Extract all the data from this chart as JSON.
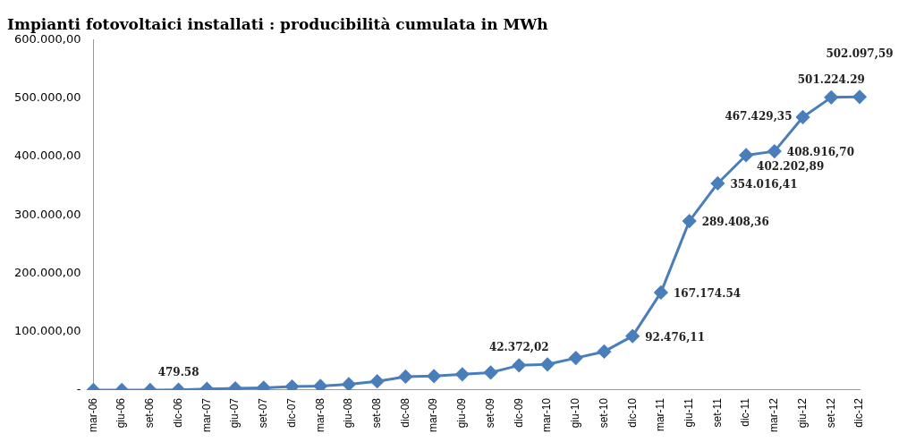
{
  "chart_data": {
    "type": "line",
    "title": "Impianti fotovoltaici installati : producibilità cumulata in MWh",
    "categories": [
      "mar-06",
      "giu-06",
      "set-06",
      "dic-06",
      "mar-07",
      "giu-07",
      "set-07",
      "dic-07",
      "mar-08",
      "giu-08",
      "set-08",
      "dic-08",
      "mar-09",
      "giu-09",
      "set-09",
      "dic-09",
      "mar-10",
      "giu-10",
      "set-10",
      "dic-10",
      "mar-11",
      "giu-11",
      "set-11",
      "dic-11",
      "mar-12",
      "giu-12",
      "set-12",
      "dic-12"
    ],
    "series": [
      {
        "color": "#4a7ebb",
        "values": [
          0,
          0,
          0,
          479.58,
          2000,
          3000,
          4000,
          6000,
          7000,
          10000,
          15000,
          23000,
          24000,
          27000,
          30000,
          42372.02,
          44000,
          55000,
          66000,
          92476.11,
          167174.54,
          289408.36,
          354016.41,
          402202.89,
          408916.7,
          467429.35,
          501224.29,
          502097.59
        ],
        "value_labels": [
          null,
          null,
          null,
          "479.58",
          null,
          null,
          null,
          null,
          null,
          null,
          null,
          null,
          null,
          null,
          null,
          "42.372,02",
          null,
          null,
          null,
          "92.476,11",
          "167.174.54",
          "289.408,36",
          "354.016,41",
          "402.202,89",
          "408.916,70",
          "467.429,35",
          "501.224.29",
          "502.097,59"
        ]
      }
    ],
    "ylim": [
      0,
      600000
    ],
    "yticks": [
      {
        "value": 0,
        "label": "-"
      },
      {
        "value": 100000,
        "label": "100.000,00"
      },
      {
        "value": 200000,
        "label": "200.000,00"
      },
      {
        "value": 300000,
        "label": "300.000,00"
      },
      {
        "value": 400000,
        "label": "400.000,00"
      },
      {
        "value": 500000,
        "label": "500.000,00"
      },
      {
        "value": 600000,
        "label": "600.000,00"
      }
    ],
    "grid": false,
    "legend": false,
    "marker": "diamond",
    "line_style": "solid"
  }
}
